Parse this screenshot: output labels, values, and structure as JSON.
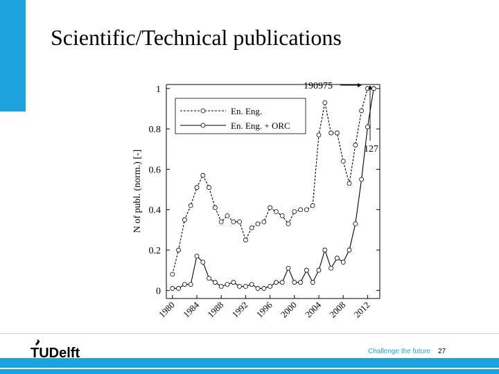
{
  "slide": {
    "title": "Scientific/Technical publications",
    "tagline": "Challenge the future",
    "page_number": "27",
    "logo_text": "TUDelft",
    "accent_color": "#1ca2dc"
  },
  "chart_data": {
    "type": "line",
    "title": "",
    "xlabel": "",
    "ylabel": "N of publ. (norm.) [-]",
    "xlim": [
      1979,
      2014
    ],
    "ylim": [
      -0.04,
      1.02
    ],
    "xticks": [
      1980,
      1984,
      1988,
      1992,
      1996,
      2000,
      2004,
      2008,
      2012
    ],
    "xtick_labels": [
      "1980",
      "1984",
      "1988",
      "1992",
      "1996",
      "2000",
      "2004",
      "2008",
      "2012"
    ],
    "yticks": [
      0,
      0.2,
      0.4,
      0.6,
      0.8,
      1
    ],
    "ytick_labels": [
      "0",
      "0.2",
      "0.4",
      "0.6",
      "0.8",
      "1"
    ],
    "grid": false,
    "legend_position": "top-left",
    "x": [
      1980,
      1981,
      1982,
      1983,
      1984,
      1985,
      1986,
      1987,
      1988,
      1989,
      1990,
      1991,
      1992,
      1993,
      1994,
      1995,
      1996,
      1997,
      1998,
      1999,
      2000,
      2001,
      2002,
      2003,
      2004,
      2005,
      2006,
      2007,
      2008,
      2009,
      2010,
      2011,
      2012,
      2013
    ],
    "series": [
      {
        "name": "En. Eng.",
        "style": "dashed",
        "values": [
          0.08,
          0.2,
          0.35,
          0.42,
          0.51,
          0.57,
          0.51,
          0.41,
          0.34,
          0.37,
          0.34,
          0.34,
          0.25,
          0.31,
          0.33,
          0.34,
          0.41,
          0.39,
          0.37,
          0.33,
          0.39,
          0.4,
          0.4,
          0.42,
          0.77,
          0.93,
          0.78,
          0.78,
          0.64,
          0.53,
          0.72,
          0.89,
          1.0,
          1.0
        ]
      },
      {
        "name": "En. Eng. + ORC",
        "style": "solid",
        "values": [
          0.01,
          0.01,
          0.03,
          0.03,
          0.17,
          0.14,
          0.06,
          0.04,
          0.02,
          0.03,
          0.04,
          0.02,
          0.02,
          0.03,
          0.01,
          0.01,
          0.02,
          0.04,
          0.04,
          0.11,
          0.04,
          0.04,
          0.1,
          0.04,
          0.1,
          0.2,
          0.11,
          0.16,
          0.14,
          0.2,
          0.33,
          0.55,
          0.81,
          1.0
        ]
      }
    ],
    "annotations": [
      {
        "text": "190975",
        "x": 2012,
        "y": 1.0
      },
      {
        "text": "127",
        "x": 2013,
        "y": 1.0
      }
    ]
  }
}
